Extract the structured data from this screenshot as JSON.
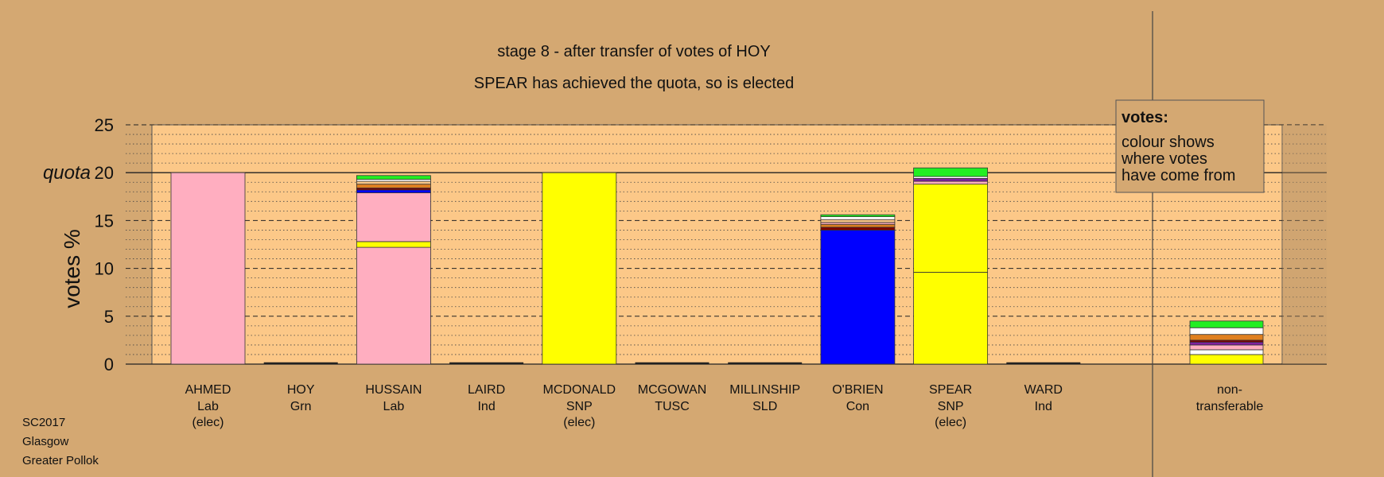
{
  "chart_data": {
    "type": "bar",
    "stacked": true,
    "title": "stage 8 - after transfer of votes of HOY",
    "subtitle": "SPEAR has achieved the quota, so is elected",
    "ylabel": "votes %",
    "ylim": [
      0,
      25
    ],
    "yticks": [
      0,
      5,
      10,
      15,
      20,
      25
    ],
    "quota": 20,
    "quota_label": "quota",
    "colors": {
      "background": "#d4a872",
      "plot_band": "#fcc888",
      "Lab": "#ffaec0",
      "SNP": "#ffff00",
      "Con": "#0000ff",
      "Grn": "#22ee22",
      "Ind_orange": "#e08020",
      "TUSC": "#800000",
      "SLD": "#f0b000",
      "Ind_purple": "#8020a0",
      "white": "#ffffff"
    },
    "candidates": [
      {
        "name": "AHMED",
        "party": "Lab",
        "note": "(elec)",
        "segments": [
          {
            "value": 20.0,
            "color": "#ffaec0"
          }
        ]
      },
      {
        "name": "HOY",
        "party": "Grn",
        "note": "",
        "segments": []
      },
      {
        "name": "HUSSAIN",
        "party": "Lab",
        "note": "",
        "segments": [
          {
            "value": 12.2,
            "color": "#ffaec0"
          },
          {
            "value": 0.6,
            "color": "#ffff00"
          },
          {
            "value": 5.1,
            "color": "#ffaec0"
          },
          {
            "value": 0.3,
            "color": "#0000ff"
          },
          {
            "value": 0.2,
            "color": "#800000"
          },
          {
            "value": 0.4,
            "color": "#e08020"
          },
          {
            "value": 0.3,
            "color": "#fcc888"
          },
          {
            "value": 0.2,
            "color": "#ffffff"
          },
          {
            "value": 0.4,
            "color": "#22ee22"
          }
        ]
      },
      {
        "name": "LAIRD",
        "party": "Ind",
        "note": "",
        "segments": []
      },
      {
        "name": "MCDONALD",
        "party": "SNP",
        "note": "(elec)",
        "segments": [
          {
            "value": 20.0,
            "color": "#ffff00"
          }
        ]
      },
      {
        "name": "MCGOWAN",
        "party": "TUSC",
        "note": "",
        "segments": []
      },
      {
        "name": "MILLINSHIP",
        "party": "SLD",
        "note": "",
        "segments": []
      },
      {
        "name": "O'BRIEN",
        "party": "Con",
        "note": "",
        "segments": [
          {
            "value": 14.0,
            "color": "#0000ff"
          },
          {
            "value": 0.3,
            "color": "#800000"
          },
          {
            "value": 0.3,
            "color": "#e08020"
          },
          {
            "value": 0.2,
            "color": "#ffaec0"
          },
          {
            "value": 0.3,
            "color": "#fcc888"
          },
          {
            "value": 0.3,
            "color": "#ffffff"
          },
          {
            "value": 0.2,
            "color": "#22ee22"
          }
        ]
      },
      {
        "name": "SPEAR",
        "party": "SNP",
        "note": "(elec)",
        "segments": [
          {
            "value": 9.6,
            "color": "#ffff00"
          },
          {
            "value": 9.2,
            "color": "#ffff00"
          },
          {
            "value": 0.3,
            "color": "#ffaec0"
          },
          {
            "value": 0.3,
            "color": "#8020a0"
          },
          {
            "value": 0.2,
            "color": "#ffffff"
          },
          {
            "value": 0.9,
            "color": "#22ee22"
          }
        ]
      },
      {
        "name": "WARD",
        "party": "Ind",
        "note": "",
        "segments": []
      }
    ],
    "nontransferable": {
      "label_line1": "non-",
      "label_line2": "transferable",
      "segments": [
        {
          "value": 1.0,
          "color": "#ffff00"
        },
        {
          "value": 0.5,
          "color": "#ffffff"
        },
        {
          "value": 0.5,
          "color": "#ffaec0"
        },
        {
          "value": 0.3,
          "color": "#8020a0"
        },
        {
          "value": 0.2,
          "color": "#800000"
        },
        {
          "value": 0.6,
          "color": "#e08020"
        },
        {
          "value": 0.7,
          "color": "#ffffff"
        },
        {
          "value": 0.7,
          "color": "#22ee22"
        }
      ]
    },
    "legend": {
      "placement": "top-right",
      "title": "votes:",
      "lines": [
        "colour shows",
        "where votes",
        "have come from"
      ]
    }
  },
  "footer": {
    "line1": "SC2017",
    "line2": "Glasgow",
    "line3": "Greater Pollok"
  }
}
